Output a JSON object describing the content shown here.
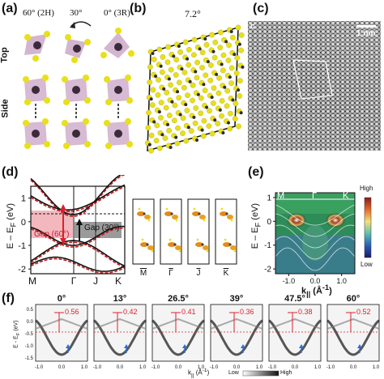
{
  "panel_labels": {
    "a": "(a)",
    "b": "(b)",
    "c": "(c)",
    "d": "(d)",
    "e": "(e)",
    "f": "(f)"
  },
  "panel_a": {
    "angle_left": "60° (2H)",
    "angle_mid": "30°",
    "angle_right": "0° (3R)",
    "row_top": "Top",
    "row_side": "Side"
  },
  "panel_b": {
    "angle": "7.2°"
  },
  "panel_c": {
    "corner_label": "c",
    "scalebar": "1 nm"
  },
  "panel_d": {
    "ylabel": "E – E",
    "ylabel_sub": "F",
    "ylabel_unit": " (eV)",
    "yticks": [
      "1",
      "0",
      "-1",
      "-2"
    ],
    "xticks": [
      "M",
      "Γ",
      "J",
      "K"
    ],
    "gap_60": "Gap (60°)",
    "gap_30": "Gap (30°)",
    "orbital_labels": [
      "M",
      "Γ",
      "J",
      "K"
    ]
  },
  "panel_e": {
    "ylabel": "E – E",
    "ylabel_sub": "F",
    "ylabel_unit": " (eV)",
    "xlabel": "k",
    "xlabel_sub": "||",
    "xlabel_unit": " (Å",
    "xlabel_sup": "-1",
    "xlabel_end": ")",
    "yticks": [
      "1",
      "0",
      "-1",
      "-2"
    ],
    "xticks": [
      "-1.0",
      "0.0",
      "1.0"
    ],
    "symmetry_points": [
      "M",
      "Γ",
      "K"
    ],
    "colorbar_high": "High",
    "colorbar_low": "Low"
  },
  "panel_f": {
    "ylabel": "E - E",
    "ylabel_sub": "F",
    "ylabel_unit": " (eV)",
    "xlabel": "k",
    "xlabel_sub": "||",
    "xlabel_unit": " (Å",
    "xlabel_sup": "-1",
    "xlabel_end": ")",
    "yticks": [
      "0.5",
      "0.0",
      "-0.5",
      "-1.0",
      "-1.5"
    ],
    "xticks": [
      "-1.0",
      "0.0",
      "1.0"
    ],
    "subpanels": [
      {
        "angle": "0°",
        "gap": "0.56"
      },
      {
        "angle": "13°",
        "gap": "0.42"
      },
      {
        "angle": "26.5°",
        "gap": "0.41"
      },
      {
        "angle": "39°",
        "gap": "0.36"
      },
      {
        "angle": "47.5°",
        "gap": "0.38"
      },
      {
        "angle": "60°",
        "gap": "0.52"
      }
    ],
    "colorbar_low": "Low",
    "colorbar_high": "High"
  },
  "colors": {
    "atom_yellow": "#e8e01a",
    "atom_dark": "#3b2b3a",
    "polyhedron": "#c9a3c4",
    "dft_red": "#c0181c",
    "gap_pink": "#f2b8be",
    "gap_gray": "#9a9a9a",
    "gap_value_red": "#e0202a",
    "arrow_blue": "#2a6fd6"
  }
}
